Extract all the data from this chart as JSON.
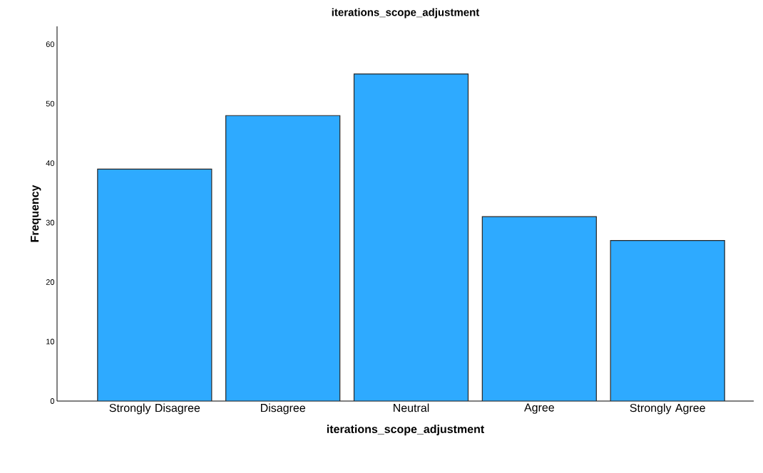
{
  "chart_data": {
    "type": "bar",
    "title": "iterations_scope_adjustment",
    "xlabel": "iterations_scope_adjustment",
    "ylabel": "Frequency",
    "categories": [
      "Strongly Disagree",
      "Disagree",
      "Neutral",
      "Agree",
      "Strongly Agree"
    ],
    "values": [
      39,
      48,
      55,
      31,
      27
    ],
    "color": "#2eaaff",
    "ylim": [
      0,
      63
    ],
    "yticks": [
      0,
      10,
      20,
      30,
      40,
      50,
      60
    ],
    "grid": false
  }
}
